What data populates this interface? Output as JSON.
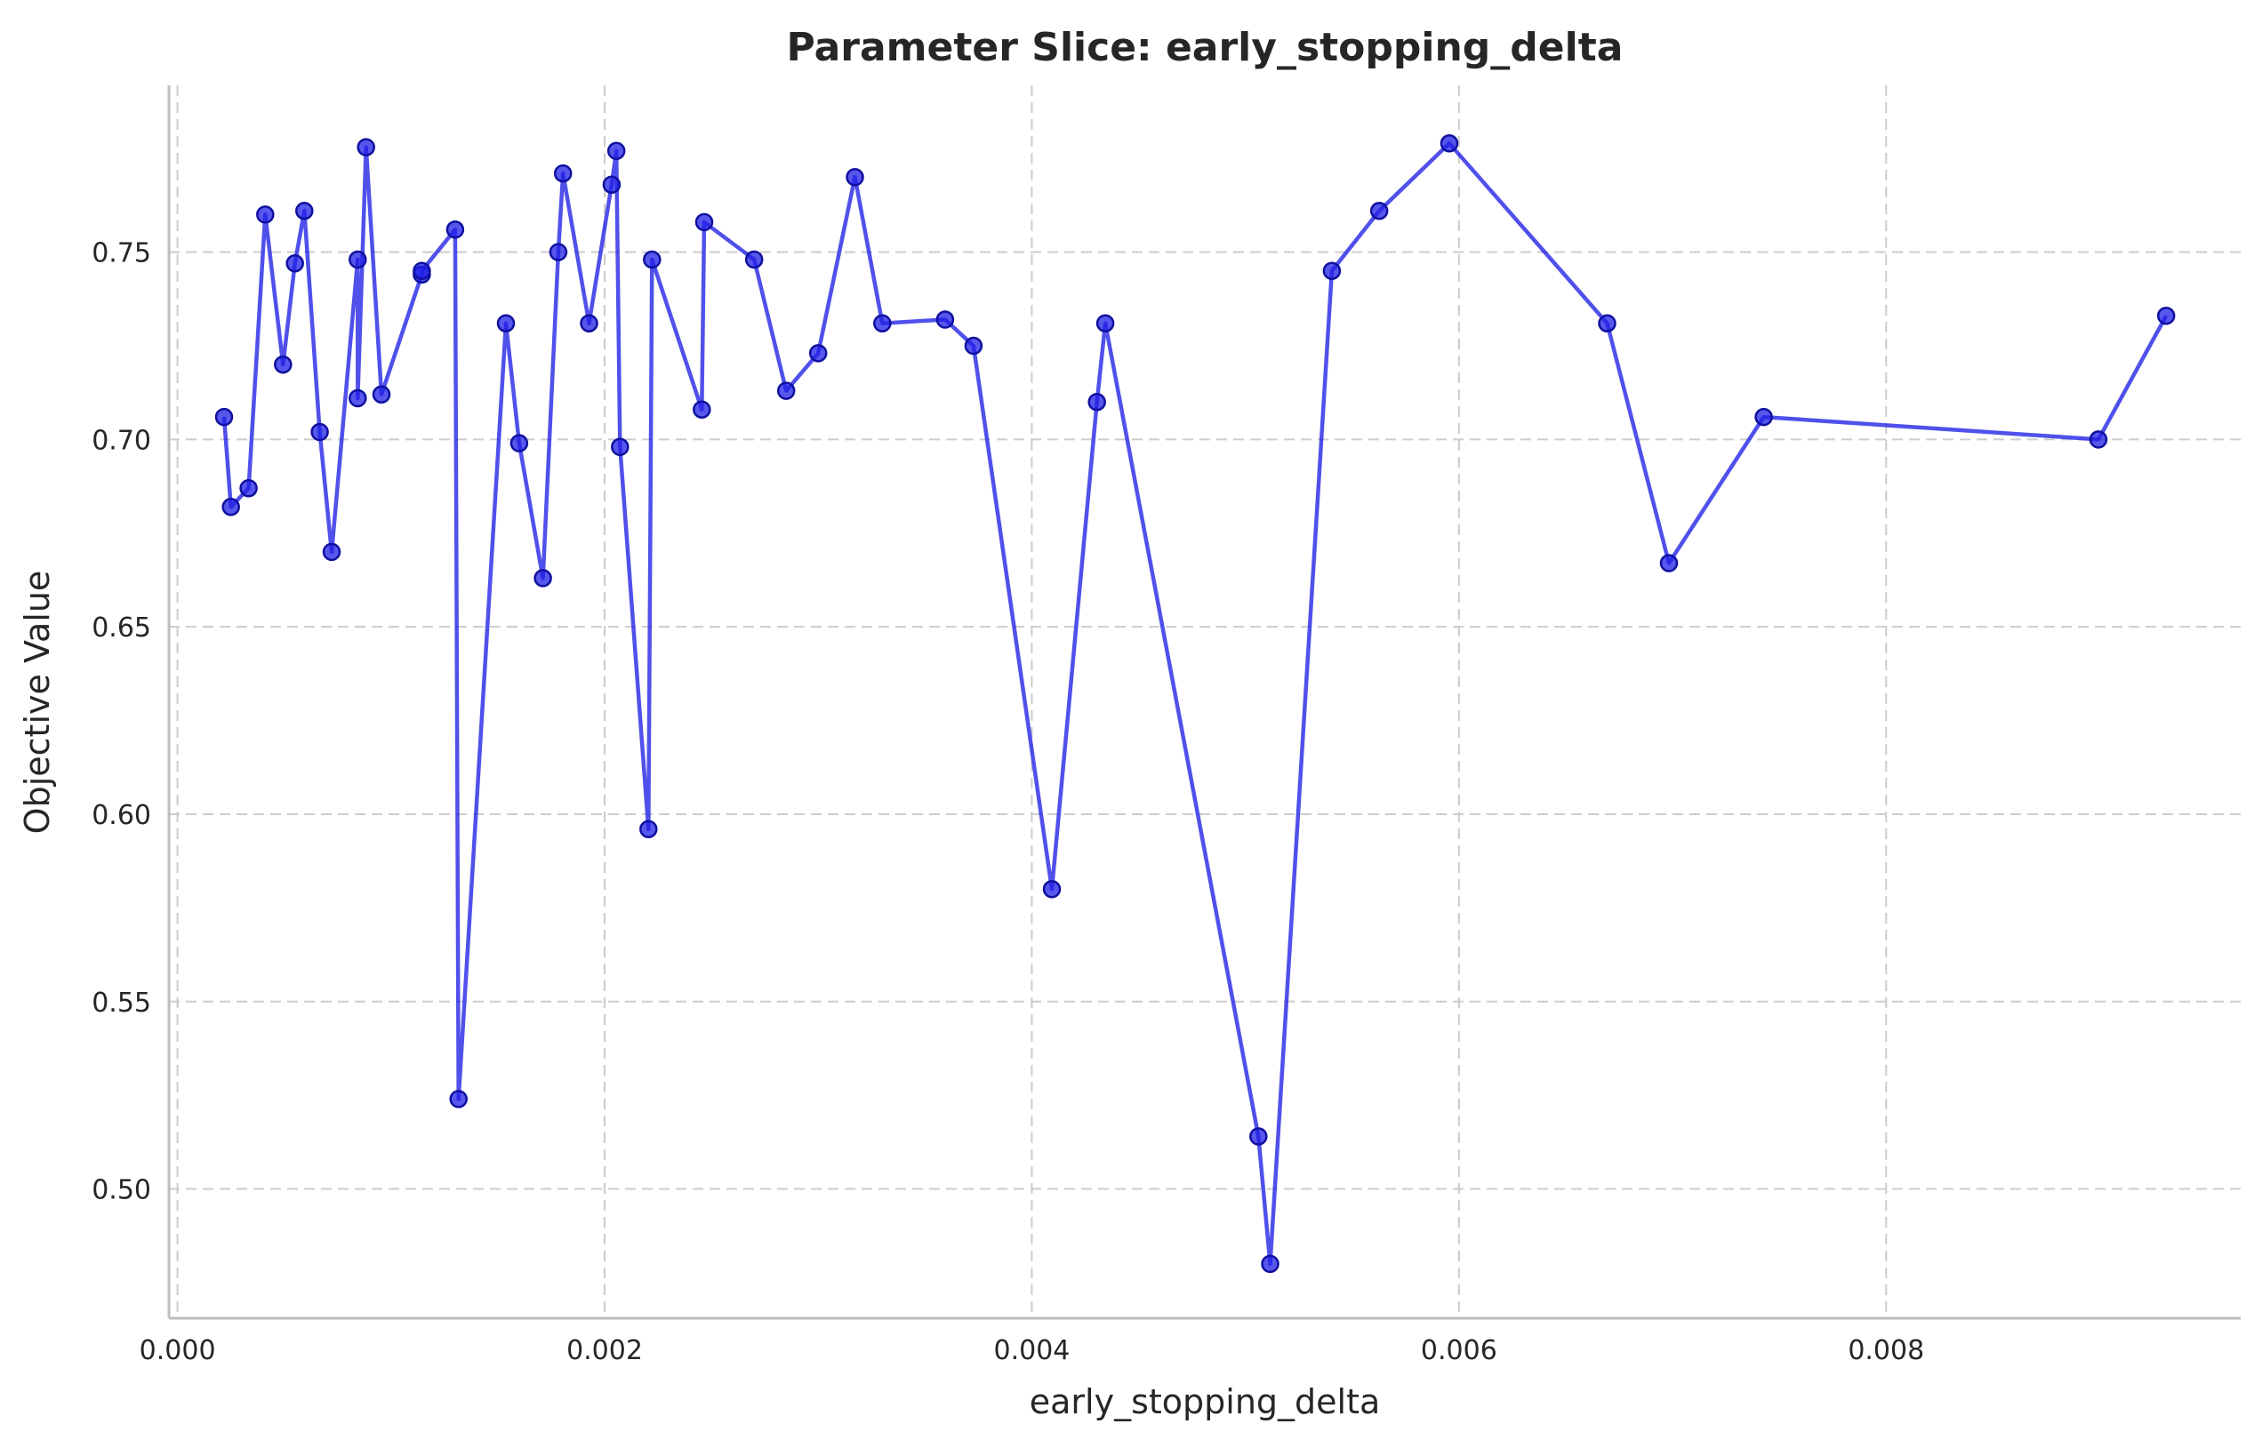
{
  "chart_data": {
    "type": "line",
    "title": "Parameter Slice: early_stopping_delta",
    "xlabel": "early_stopping_delta",
    "ylabel": "Objective Value",
    "xlim": [
      -4e-05,
      0.00966
    ],
    "ylim": [
      0.4655,
      0.7945
    ],
    "xticks": [
      0.0,
      0.002,
      0.004,
      0.006,
      0.008
    ],
    "xtick_labels": [
      "0.000",
      "0.002",
      "0.004",
      "0.006",
      "0.008"
    ],
    "yticks": [
      0.5,
      0.55,
      0.6,
      0.65,
      0.7,
      0.75
    ],
    "ytick_labels": [
      "0.50",
      "0.55",
      "0.60",
      "0.65",
      "0.70",
      "0.75"
    ],
    "grid": true,
    "line_color": "#1f1fe6",
    "series": [
      {
        "x": [
          0.000218,
          0.00025,
          0.000333,
          0.000411,
          0.000494,
          0.00055,
          0.000594,
          0.000666,
          0.000722,
          0.000844,
          0.000844,
          0.000883,
          0.000955,
          0.001144,
          0.001144,
          0.0013,
          0.001316,
          0.001538,
          0.0016,
          0.001711,
          0.001783,
          0.001805,
          0.001927,
          0.002033,
          0.002055,
          0.002072,
          0.002205,
          0.002222,
          0.002455,
          0.002466,
          0.0027,
          0.00285,
          0.003,
          0.003172,
          0.0033,
          0.003594,
          0.003727,
          0.004094,
          0.004305,
          0.004344,
          0.005061,
          0.005116,
          0.005405,
          0.005627,
          0.005955,
          0.006694,
          0.006983,
          0.007427,
          0.008994,
          0.009311
        ],
        "y": [
          0.706,
          0.682,
          0.687,
          0.76,
          0.72,
          0.747,
          0.761,
          0.702,
          0.67,
          0.748,
          0.711,
          0.778,
          0.712,
          0.744,
          0.745,
          0.756,
          0.524,
          0.731,
          0.699,
          0.663,
          0.75,
          0.771,
          0.731,
          0.768,
          0.777,
          0.698,
          0.596,
          0.748,
          0.708,
          0.758,
          0.748,
          0.713,
          0.723,
          0.77,
          0.731,
          0.732,
          0.725,
          0.58,
          0.71,
          0.731,
          0.514,
          0.48,
          0.745,
          0.761,
          0.779,
          0.731,
          0.667,
          0.706,
          0.7,
          0.733
        ]
      }
    ]
  }
}
